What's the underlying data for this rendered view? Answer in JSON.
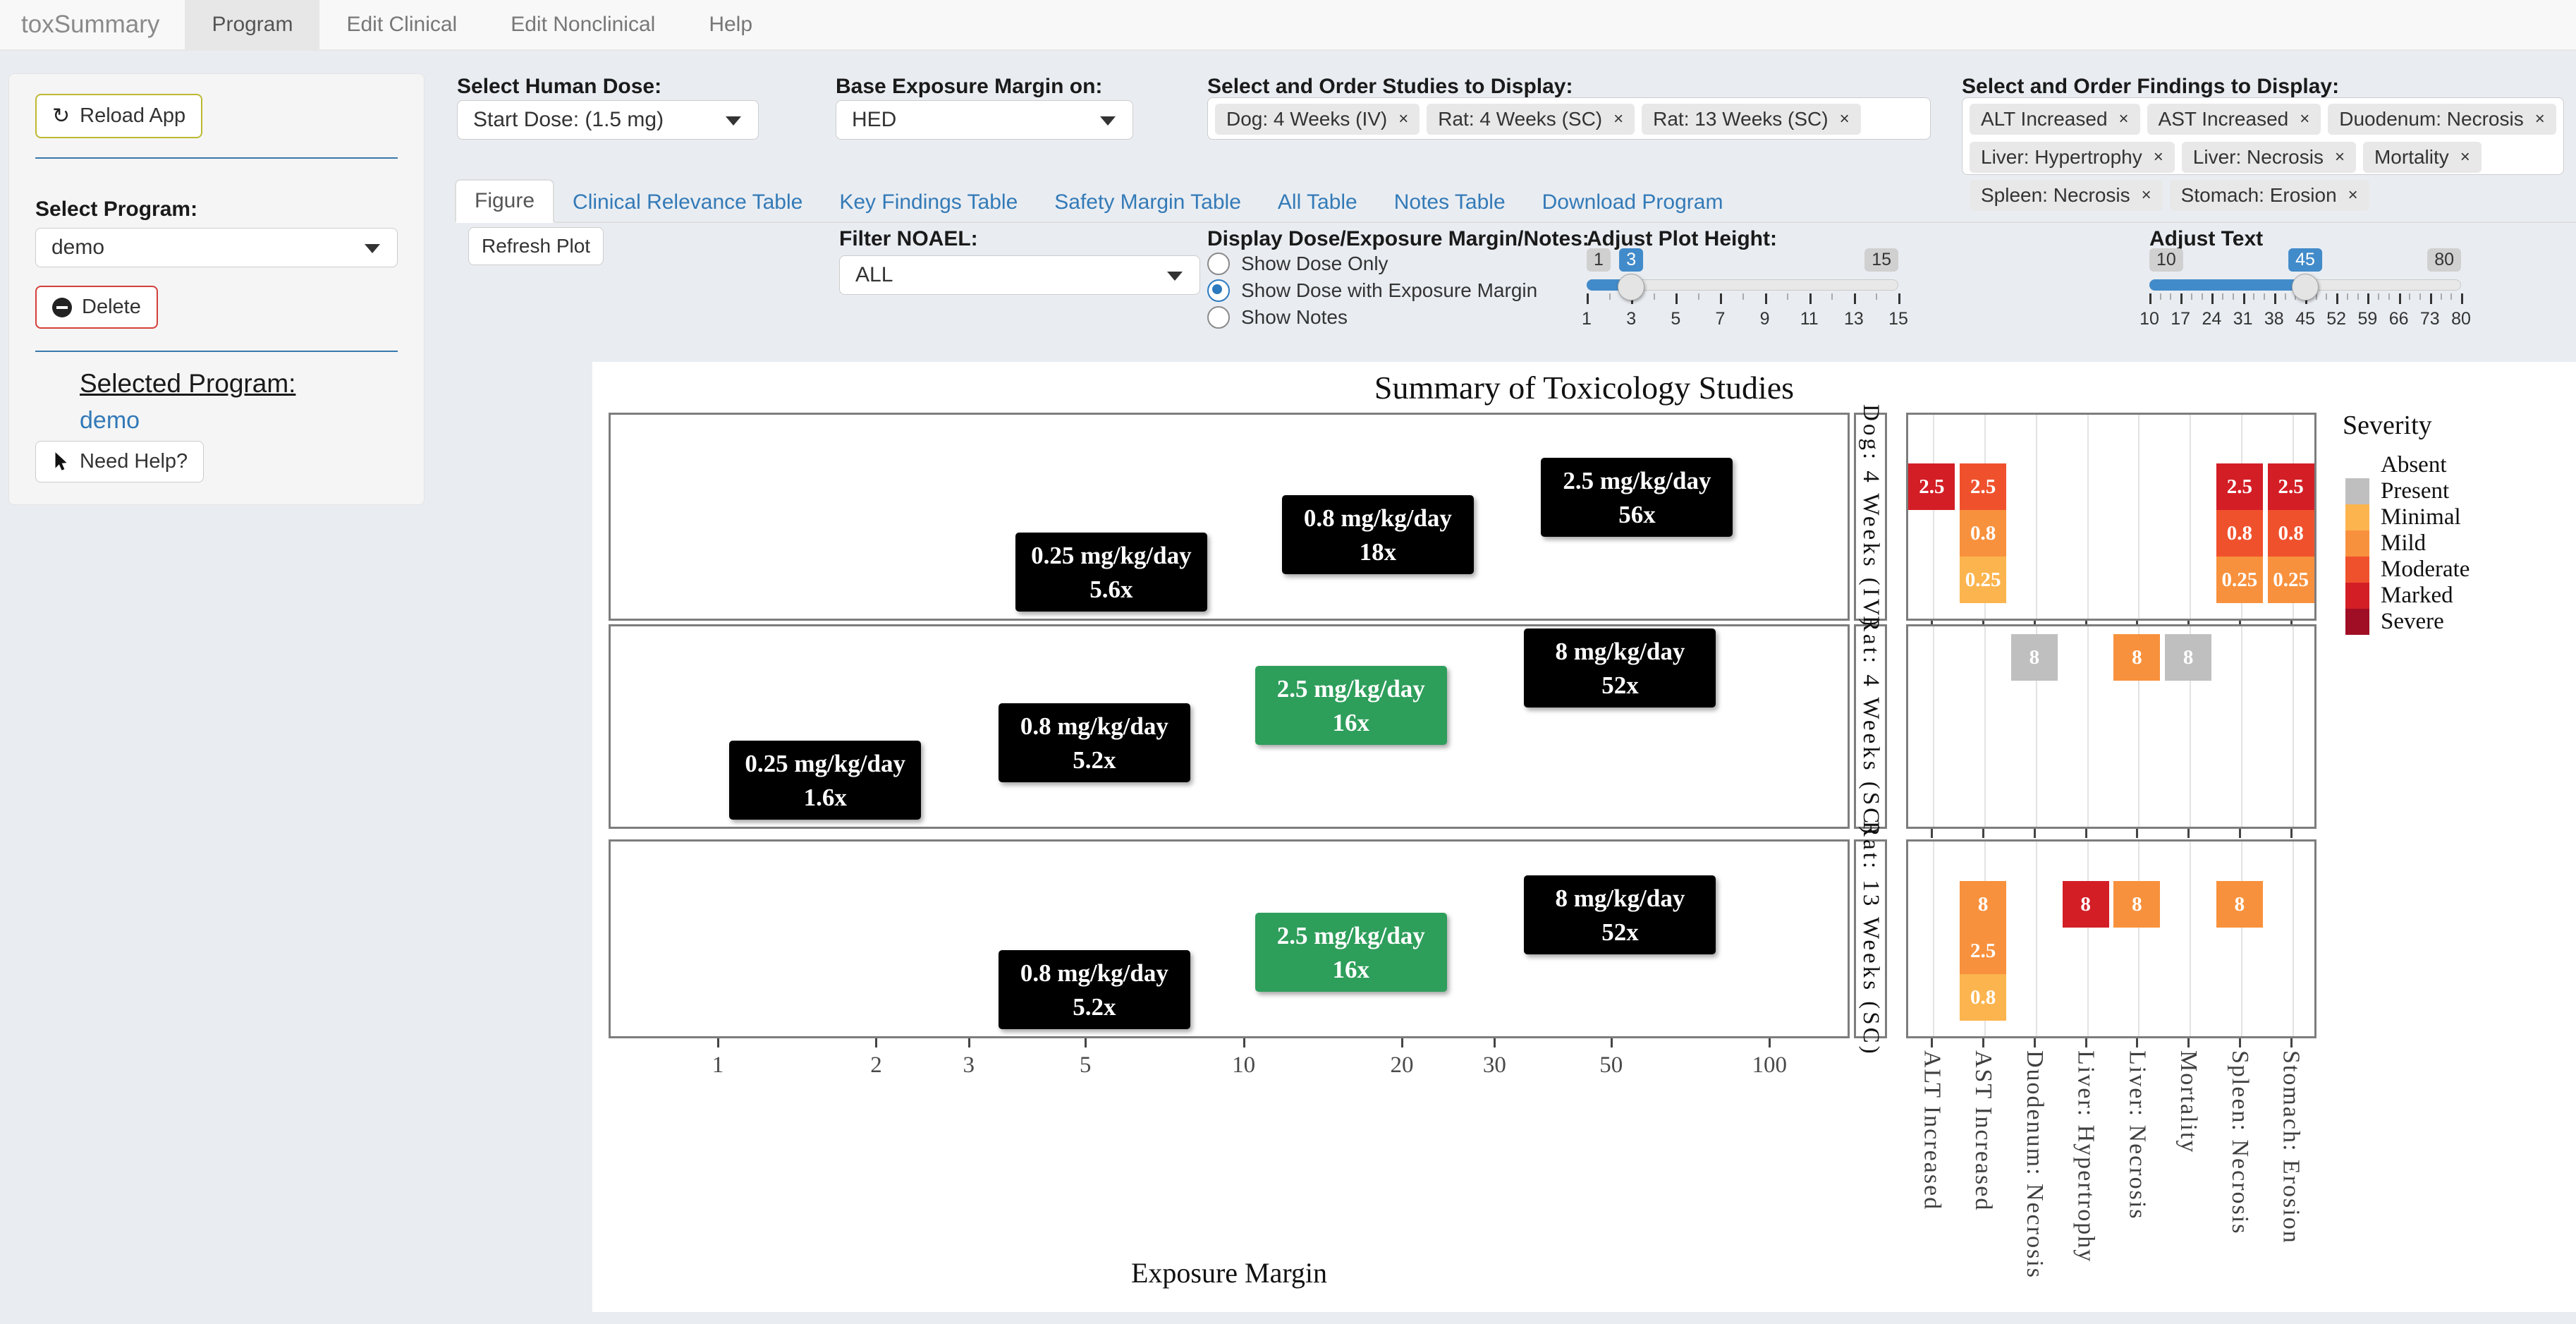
{
  "navbar": {
    "brand": "toxSummary",
    "items": [
      {
        "label": "Program",
        "active": true
      },
      {
        "label": "Edit Clinical",
        "active": false
      },
      {
        "label": "Edit Nonclinical",
        "active": false
      },
      {
        "label": "Help",
        "active": false
      }
    ]
  },
  "sidebar": {
    "reload_button": "Reload App",
    "select_program_label": "Select Program:",
    "program_value": "demo",
    "delete_button": "Delete",
    "selected_program_label": "Selected Program:",
    "selected_program_value": "demo",
    "help_button": "Need Help?"
  },
  "controls": {
    "human_dose": {
      "label": "Select Human Dose:",
      "value": "Start Dose: (1.5 mg)"
    },
    "margin_base": {
      "label": "Base Exposure Margin on:",
      "value": "HED"
    },
    "studies": {
      "label": "Select and Order Studies to Display:",
      "tags": [
        "Dog: 4 Weeks (IV)",
        "Rat: 4 Weeks (SC)",
        "Rat: 13 Weeks (SC)"
      ],
      "remove": "×"
    },
    "findings": {
      "label": "Select and Order Findings to Display:",
      "tags": [
        "ALT Increased",
        "AST Increased",
        "Duodenum: Necrosis",
        "Liver: Hypertrophy",
        "Liver: Necrosis",
        "Mortality",
        "Spleen: Necrosis",
        "Stomach: Erosion"
      ],
      "remove": "×"
    }
  },
  "tabs": [
    "Figure",
    "Clinical Relevance Table",
    "Key Findings Table",
    "Safety Margin Table",
    "All Table",
    "Notes Table",
    "Download Program"
  ],
  "figure_bar": {
    "refresh_button": "Refresh Plot",
    "filter_noael": {
      "label": "Filter NOAEL:",
      "value": "ALL"
    },
    "display_options": {
      "label": "Display Dose/Exposure Margin/Notes:",
      "options": [
        "Show Dose Only",
        "Show Dose with Exposure Margin",
        "Show Notes"
      ],
      "selected": 1
    },
    "plot_height_slider": {
      "label": "Adjust Plot Height:",
      "min": 1,
      "max": 15,
      "value": 3,
      "ticks": [
        1,
        3,
        5,
        7,
        9,
        11,
        13,
        15
      ]
    },
    "text_slider": {
      "label": "Adjust Text",
      "min": 10,
      "max": 80,
      "value": 45,
      "ticks": [
        10,
        17,
        24,
        31,
        38,
        45,
        52,
        59,
        66,
        73,
        80
      ]
    }
  },
  "chart_data": {
    "type": "custom-toxicology-summary",
    "title": "Summary of Toxicology Studies",
    "xlabel": "Exposure Margin",
    "x_scale": "log",
    "x_ticks": [
      1,
      2,
      3,
      5,
      10,
      20,
      30,
      50,
      100
    ],
    "noael_color": "#2e9e5b",
    "dose_box_color": "#000000",
    "studies": [
      {
        "name": "Dog: 4 Weeks (IV)",
        "doses": [
          {
            "dose": "0.25 mg/kg/day",
            "margin": 5.6,
            "margin_label": "5.6x",
            "noael": false
          },
          {
            "dose": "0.8 mg/kg/day",
            "margin": 18,
            "margin_label": "18x",
            "noael": false
          },
          {
            "dose": "2.5 mg/kg/day",
            "margin": 56,
            "margin_label": "56x",
            "noael": false
          }
        ]
      },
      {
        "name": "Rat: 4 Weeks (SC)",
        "doses": [
          {
            "dose": "0.25 mg/kg/day",
            "margin": 1.6,
            "margin_label": "1.6x",
            "noael": false
          },
          {
            "dose": "0.8 mg/kg/day",
            "margin": 5.2,
            "margin_label": "5.2x",
            "noael": false
          },
          {
            "dose": "2.5 mg/kg/day",
            "margin": 16,
            "margin_label": "16x",
            "noael": true
          },
          {
            "dose": "8 mg/kg/day",
            "margin": 52,
            "margin_label": "52x",
            "noael": false
          }
        ]
      },
      {
        "name": "Rat: 13 Weeks (SC)",
        "doses": [
          {
            "dose": "0.8 mg/kg/day",
            "margin": 5.2,
            "margin_label": "5.2x",
            "noael": false
          },
          {
            "dose": "2.5 mg/kg/day",
            "margin": 16,
            "margin_label": "16x",
            "noael": true
          },
          {
            "dose": "8 mg/kg/day",
            "margin": 52,
            "margin_label": "52x",
            "noael": false
          }
        ]
      }
    ],
    "findings_columns": [
      "ALT Increased",
      "AST Increased",
      "Duodenum: Necrosis",
      "Liver: Hypertrophy",
      "Liver: Necrosis",
      "Mortality",
      "Spleen: Necrosis",
      "Stomach: Erosion"
    ],
    "heatmap": [
      {
        "study": "Dog: 4 Weeks (IV)",
        "cells": [
          {
            "col": 0,
            "row": 0,
            "dose": "2.5",
            "severity": "Marked"
          },
          {
            "col": 1,
            "row": 0,
            "dose": "2.5",
            "severity": "Moderate"
          },
          {
            "col": 1,
            "row": 1,
            "dose": "0.8",
            "severity": "Mild"
          },
          {
            "col": 1,
            "row": 2,
            "dose": "0.25",
            "severity": "Minimal"
          },
          {
            "col": 6,
            "row": 0,
            "dose": "2.5",
            "severity": "Marked"
          },
          {
            "col": 6,
            "row": 1,
            "dose": "0.8",
            "severity": "Moderate"
          },
          {
            "col": 6,
            "row": 2,
            "dose": "0.25",
            "severity": "Mild"
          },
          {
            "col": 7,
            "row": 0,
            "dose": "2.5",
            "severity": "Marked"
          },
          {
            "col": 7,
            "row": 1,
            "dose": "0.8",
            "severity": "Moderate"
          },
          {
            "col": 7,
            "row": 2,
            "dose": "0.25",
            "severity": "Mild"
          }
        ]
      },
      {
        "study": "Rat: 4 Weeks (SC)",
        "cells": [
          {
            "col": 2,
            "row": 0,
            "dose": "8",
            "severity": "Present"
          },
          {
            "col": 4,
            "row": 0,
            "dose": "8",
            "severity": "Mild"
          },
          {
            "col": 5,
            "row": 0,
            "dose": "8",
            "severity": "Present"
          }
        ]
      },
      {
        "study": "Rat: 13 Weeks (SC)",
        "cells": [
          {
            "col": 1,
            "row": 0,
            "dose": "8",
            "severity": "Mild"
          },
          {
            "col": 1,
            "row": 1,
            "dose": "2.5",
            "severity": "Mild"
          },
          {
            "col": 1,
            "row": 2,
            "dose": "0.8",
            "severity": "Minimal"
          },
          {
            "col": 3,
            "row": 0,
            "dose": "8",
            "severity": "Marked"
          },
          {
            "col": 4,
            "row": 0,
            "dose": "8",
            "severity": "Mild"
          },
          {
            "col": 6,
            "row": 0,
            "dose": "8",
            "severity": "Mild"
          }
        ]
      }
    ],
    "severity_legend": {
      "title": "Severity",
      "levels": [
        "Absent",
        "Present",
        "Minimal",
        "Mild",
        "Moderate",
        "Marked",
        "Severe"
      ],
      "colors": {
        "Absent": "#ffffff",
        "Present": "#bfbfbf",
        "Minimal": "#fcb44e",
        "Mild": "#f8913d",
        "Moderate": "#f0512d",
        "Marked": "#d31e26",
        "Severe": "#a00e25"
      }
    }
  }
}
